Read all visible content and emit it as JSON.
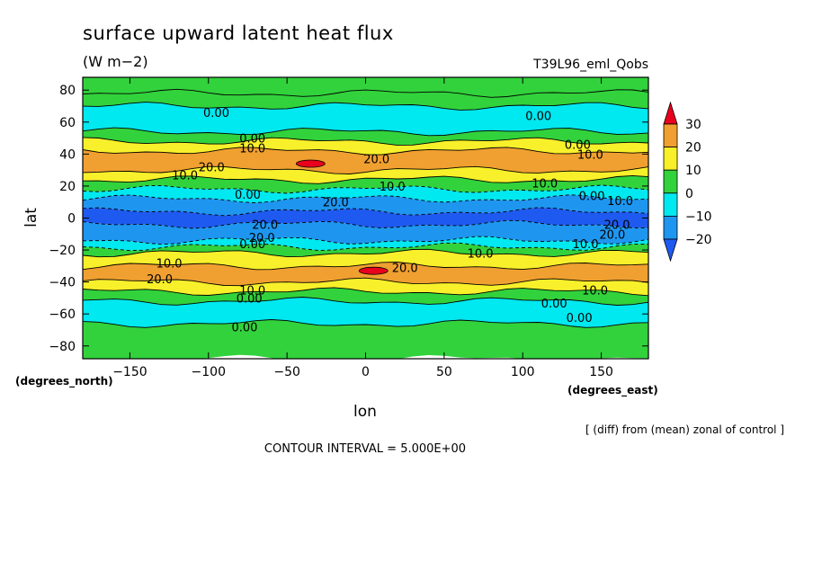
{
  "chart_data": {
    "type": "heatmap",
    "title": "surface upward latent heat flux",
    "units": "(W m−2)",
    "run_label": "T39L96_eml_Qobs",
    "xlabel": "lon",
    "ylabel": "lat",
    "x_unit_label": "(degrees_east)",
    "y_unit_label": "(degrees_north)",
    "xlim": [
      -180,
      180
    ],
    "ylim": [
      -88,
      88
    ],
    "x_ticks": [
      -150,
      -100,
      -50,
      0,
      50,
      100,
      150
    ],
    "x_tick_labels": [
      "−150",
      "−100",
      "−50",
      "0",
      "50",
      "100",
      "150"
    ],
    "y_ticks": [
      80,
      60,
      40,
      20,
      0,
      -20,
      -40,
      -60,
      -80
    ],
    "y_tick_labels": [
      "80",
      "60",
      "40",
      "20",
      "0",
      "−20",
      "−40",
      "−60",
      "−80"
    ],
    "note": "[ (diff) from (mean) zonal of control ]",
    "contour_interval": "CONTOUR INTERVAL = 5.000E+00",
    "colorbar": {
      "levels": [
        30,
        20,
        10,
        0,
        -10,
        -20
      ],
      "tick_labels": [
        "30",
        "20",
        "10",
        "0",
        "−10",
        "−20"
      ],
      "bins": [
        {
          "range": "> 30",
          "color": "#e8001c"
        },
        {
          "range": "20 to 30",
          "color": "#f0a030"
        },
        {
          "range": "10 to 20",
          "color": "#f8f02a"
        },
        {
          "range": "0 to 10",
          "color": "#32d23c"
        },
        {
          "range": "-10 to 0",
          "color": "#00e8f0"
        },
        {
          "range": "-20 to -10",
          "color": "#1e96f0"
        },
        {
          "range": "< -20",
          "color": "#1e5af0"
        }
      ]
    },
    "zonal_bands": [
      {
        "lat": [
          78,
          88
        ],
        "value": 5
      },
      {
        "lat": [
          70,
          78
        ],
        "value": 5
      },
      {
        "lat": [
          54,
          70
        ],
        "value": -5
      },
      {
        "lat": [
          48,
          54
        ],
        "value": 5
      },
      {
        "lat": [
          42,
          48
        ],
        "value": 15
      },
      {
        "lat": [
          30,
          42
        ],
        "value": 25
      },
      {
        "lat": [
          24,
          30
        ],
        "value": 15
      },
      {
        "lat": [
          18,
          24
        ],
        "value": 5
      },
      {
        "lat": [
          12,
          18
        ],
        "value": -5
      },
      {
        "lat": [
          4,
          12
        ],
        "value": -15
      },
      {
        "lat": [
          -4,
          4
        ],
        "value": -25
      },
      {
        "lat": [
          -14,
          -4
        ],
        "value": -15
      },
      {
        "lat": [
          -18,
          -14
        ],
        "value": -5
      },
      {
        "lat": [
          -22,
          -18
        ],
        "value": 5
      },
      {
        "lat": [
          -30,
          -22
        ],
        "value": 15
      },
      {
        "lat": [
          -40,
          -30
        ],
        "value": 25
      },
      {
        "lat": [
          -46,
          -40
        ],
        "value": 15
      },
      {
        "lat": [
          -52,
          -46
        ],
        "value": 5
      },
      {
        "lat": [
          -66,
          -52
        ],
        "value": -5
      },
      {
        "lat": [
          -88,
          -66
        ],
        "value": 5
      }
    ],
    "extrema": [
      {
        "lon": -35,
        "lat": 34,
        "value": 32
      },
      {
        "lon": 5,
        "lat": -33,
        "value": 33
      }
    ],
    "contour_labels": [
      {
        "text": "0.00",
        "lon": -95,
        "lat": 66
      },
      {
        "text": "0.00",
        "lon": 110,
        "lat": 64
      },
      {
        "text": "0.00",
        "lon": -72,
        "lat": 50
      },
      {
        "text": "10.0",
        "lon": -72,
        "lat": 44
      },
      {
        "text": "0.00",
        "lon": 135,
        "lat": 46
      },
      {
        "text": "10.0",
        "lon": 143,
        "lat": 40
      },
      {
        "text": "20.0",
        "lon": -98,
        "lat": 32
      },
      {
        "text": "10.0",
        "lon": -115,
        "lat": 27
      },
      {
        "text": "20.0",
        "lon": 7,
        "lat": 37
      },
      {
        "text": "10.0",
        "lon": 17,
        "lat": 20
      },
      {
        "text": "10.0",
        "lon": 114,
        "lat": 22
      },
      {
        "text": "0.00",
        "lon": -75,
        "lat": 15
      },
      {
        "text": "20.0",
        "lon": -19,
        "lat": 10
      },
      {
        "text": "0.00",
        "lon": 144,
        "lat": 14
      },
      {
        "text": "10.0",
        "lon": 162,
        "lat": 11
      },
      {
        "text": "20.0",
        "lon": -64,
        "lat": -4
      },
      {
        "text": "20.0",
        "lon": -66,
        "lat": -12
      },
      {
        "text": "0.00",
        "lon": -72,
        "lat": -16
      },
      {
        "text": "20.0",
        "lon": 160,
        "lat": -4
      },
      {
        "text": "20.0",
        "lon": 157,
        "lat": -10
      },
      {
        "text": "10.0",
        "lon": 140,
        "lat": -16
      },
      {
        "text": "10.0",
        "lon": 73,
        "lat": -22
      },
      {
        "text": "10.0",
        "lon": -125,
        "lat": -28
      },
      {
        "text": "20.0",
        "lon": -131,
        "lat": -38
      },
      {
        "text": "20.0",
        "lon": 25,
        "lat": -31
      },
      {
        "text": "10.0",
        "lon": -72,
        "lat": -45
      },
      {
        "text": "0.00",
        "lon": -74,
        "lat": -50
      },
      {
        "text": "10.0",
        "lon": 146,
        "lat": -45
      },
      {
        "text": "0.00",
        "lon": 120,
        "lat": -53
      },
      {
        "text": "0.00",
        "lon": 136,
        "lat": -62
      },
      {
        "text": "0.00",
        "lon": -77,
        "lat": -68
      }
    ]
  }
}
